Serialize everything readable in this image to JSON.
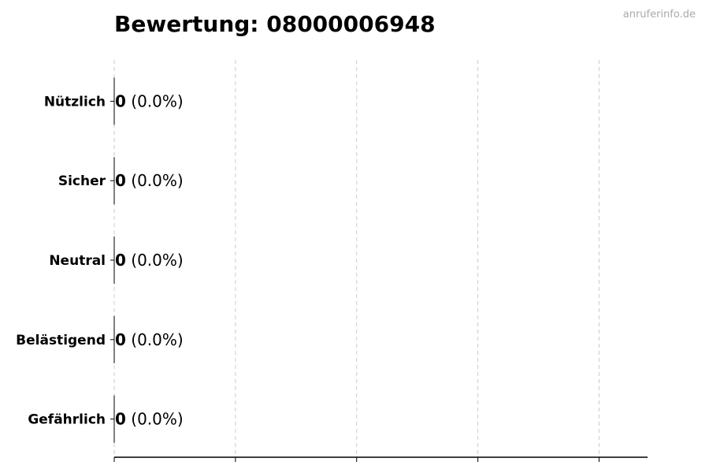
{
  "watermark": "anruferinfo.de",
  "chart_data": {
    "type": "bar",
    "orientation": "horizontal",
    "title": "Bewertung: 08000006948",
    "categories": [
      "Nützlich",
      "Sicher",
      "Neutral",
      "Belästigend",
      "Gefährlich"
    ],
    "values": [
      0,
      0,
      0,
      0,
      0
    ],
    "labels": [
      "0",
      "0",
      "0",
      "0",
      "0"
    ],
    "percent_labels": [
      "(0.0%)",
      "(0.0%)",
      "(0.0%)",
      "(0.0%)",
      "(0.0%)"
    ],
    "xlim": [
      0,
      4.4
    ],
    "xticks": [
      0,
      1,
      2,
      3,
      4
    ],
    "grid": "x-dashed",
    "bar_color": "#000000",
    "grid_color": "#cccccc"
  }
}
